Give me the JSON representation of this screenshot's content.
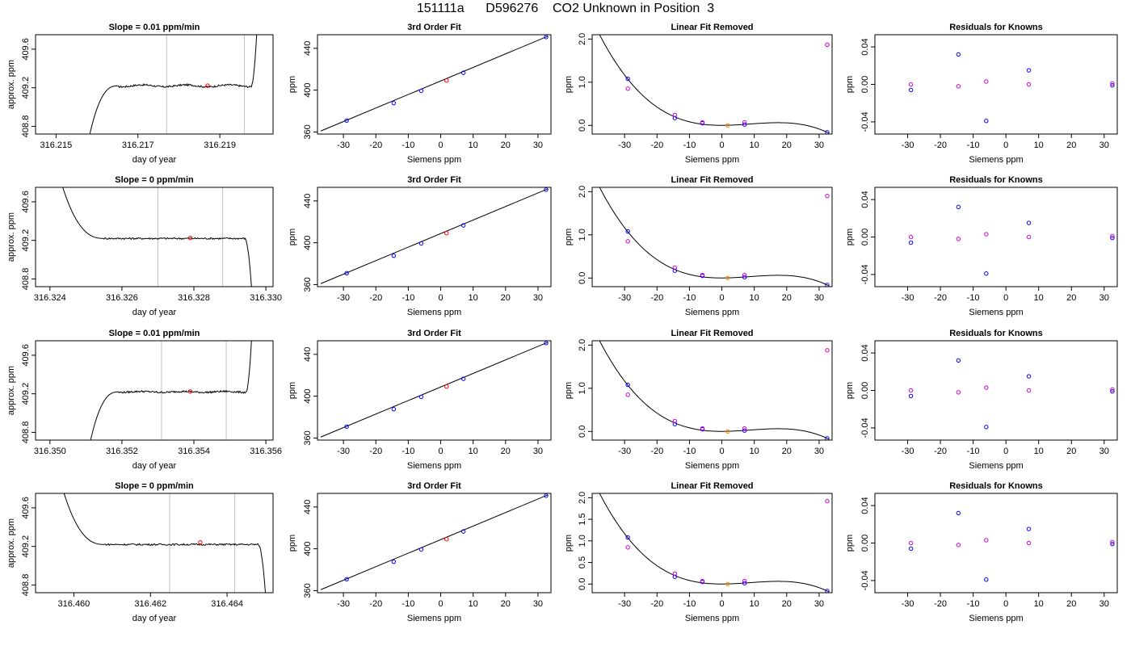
{
  "title": "151111a      D596276    CO2 Unknown in Position  3",
  "colors": {
    "known": "#0000ff",
    "unknown": "#ff0000",
    "unknown_removed": "#ff8c00",
    "unknown_residual": "#cc00cc",
    "window": "#bfbfbf",
    "line": "#000000"
  },
  "xlabels": {
    "time": "day of year",
    "siemens": "Siemens ppm"
  },
  "ylabels": {
    "time": "approx. ppm",
    "ppm": "ppm"
  },
  "panel_titles": {
    "fit": "3rd Order Fit",
    "lin": "Linear Fit Removed",
    "res": "Residuals for Knowns"
  },
  "rows": [
    {
      "slope_title": "Slope =  0.01  ppm/min",
      "time_xlim": [
        316.2145,
        316.2203
      ],
      "time_xticks": [
        "316.215",
        "316.217",
        "316.219"
      ],
      "time_xtick_values": [
        316.215,
        316.217,
        316.219
      ],
      "time_window": [
        316.2177,
        316.2196
      ],
      "time_marker": [
        316.2187,
        409.222
      ],
      "trace": {
        "start_x": 316.2158,
        "plateau_from": 316.2165,
        "end_x": 316.2199,
        "end_y": 409.75,
        "bump": 0.01
      },
      "lin_orange_y": 0.0,
      "lin_magenta_y": 1.87
    },
    {
      "slope_title": "Slope =  0  ppm/min",
      "time_xlim": [
        316.3236,
        316.3302
      ],
      "time_xticks": [
        "316.324",
        "316.326",
        "316.328",
        "316.330"
      ],
      "time_xtick_values": [
        316.324,
        316.326,
        316.328,
        316.33
      ],
      "time_window": [
        316.327,
        316.3288
      ],
      "time_marker": [
        316.3279,
        409.225
      ],
      "trace": {
        "start_x": 316.3242,
        "plateau_from": 316.3255,
        "end_x": 316.3296,
        "end_y": 408.72,
        "bump": 0.0
      },
      "lin_orange_y": 0.0,
      "lin_magenta_y": 1.9
    },
    {
      "slope_title": "Slope =  0.01  ppm/min",
      "time_xlim": [
        316.3496,
        316.3562
      ],
      "time_xticks": [
        "316.350",
        "316.352",
        "316.354",
        "316.356"
      ],
      "time_xtick_values": [
        316.35,
        316.352,
        316.354,
        316.356
      ],
      "time_window": [
        316.3531,
        316.3549
      ],
      "time_marker": [
        316.3539,
        409.224
      ],
      "trace": {
        "start_x": 316.3511,
        "plateau_from": 316.3519,
        "end_x": 316.3556,
        "end_y": 409.75,
        "bump": 0.005
      },
      "lin_orange_y": 0.0,
      "lin_magenta_y": 1.88
    },
    {
      "slope_title": "Slope =  0  ppm/min",
      "time_xlim": [
        316.459,
        316.4652
      ],
      "time_xticks": [
        "316.460",
        "316.462",
        "316.464"
      ],
      "time_xtick_values": [
        316.46,
        316.462,
        316.464
      ],
      "time_window": [
        316.4625,
        316.4642
      ],
      "time_marker": [
        316.4633,
        409.242
      ],
      "trace": {
        "start_x": 316.4596,
        "plateau_from": 316.4608,
        "end_x": 316.465,
        "end_y": 408.72,
        "bump": 0.0
      },
      "lin_orange_y": 0.0,
      "lin_magenta_y": 1.92
    }
  ],
  "chart_data": [
    {
      "type": "line",
      "panel": "time series",
      "title": "Slope =  0.01  ppm/min / Slope =  0  ppm/min",
      "xlabel": "day of year",
      "ylabel": "approx. ppm",
      "ylim": [
        408.72,
        409.75
      ],
      "yticks": [
        408.8,
        409.2,
        409.6
      ],
      "note_plateau_value": 409.22
    },
    {
      "type": "scatter",
      "panel": "3rd order fit",
      "title": "3rd Order Fit",
      "xlabel": "Siemens ppm",
      "ylabel": "ppm",
      "xlim": [
        -38,
        34
      ],
      "ylim": [
        358,
        453
      ],
      "xticks": [
        -30,
        -20,
        -10,
        0,
        10,
        20,
        30
      ],
      "yticks": [
        360,
        400,
        440
      ],
      "known_x": [
        -29,
        -14.5,
        -6,
        7,
        32.5
      ],
      "known_y": [
        370.9,
        387.6,
        399.3,
        416.6,
        450.8
      ],
      "unknown_x": [
        1.8
      ],
      "unknown_y": [
        409.2
      ],
      "fit_line_x": [
        -37,
        33
      ],
      "fit_line_y": [
        360.9,
        451.5
      ]
    },
    {
      "type": "scatter",
      "panel": "linear fit removed",
      "title": "Linear Fit Removed",
      "xlabel": "Siemens ppm",
      "ylabel": "ppm",
      "xlim": [
        -40,
        34
      ],
      "ylim": [
        -0.2,
        2.1
      ],
      "yticks": [
        0.0,
        1.0,
        2.0
      ],
      "known_x": [
        -29,
        -14.5,
        -6,
        7,
        32.5
      ],
      "known_y": [
        1.08,
        0.17,
        0.05,
        0.02,
        -0.16
      ],
      "known2_x": [
        -29,
        -14.5,
        -6,
        7
      ],
      "known2_y": [
        0.85,
        0.24,
        0.07,
        0.07
      ],
      "unknown_x": [
        1.8
      ],
      "cubic_through": [
        [
          -37,
          2.0
        ],
        [
          -29,
          1.07
        ],
        [
          -14.5,
          0.19
        ],
        [
          -6,
          0.04
        ],
        [
          1.8,
          0.0
        ],
        [
          7,
          0.02
        ],
        [
          20,
          0.06
        ],
        [
          32.5,
          -0.16
        ]
      ]
    },
    {
      "type": "scatter",
      "panel": "residuals",
      "title": "Residuals for Knowns",
      "xlabel": "Siemens ppm",
      "ylabel": "ppm",
      "xlim": [
        -40,
        34
      ],
      "ylim": [
        -0.053,
        0.053
      ],
      "yticks": [
        -0.04,
        0.0,
        0.04
      ],
      "blue_x": [
        -29,
        -14.5,
        -6,
        7,
        32.5
      ],
      "blue_y": [
        -0.006,
        0.032,
        -0.039,
        0.015,
        -0.001
      ],
      "magenta_x": [
        -29,
        -14.5,
        -6,
        7,
        32.5
      ],
      "magenta_y": [
        0.0,
        -0.002,
        0.003,
        0.0,
        0.001
      ]
    }
  ]
}
